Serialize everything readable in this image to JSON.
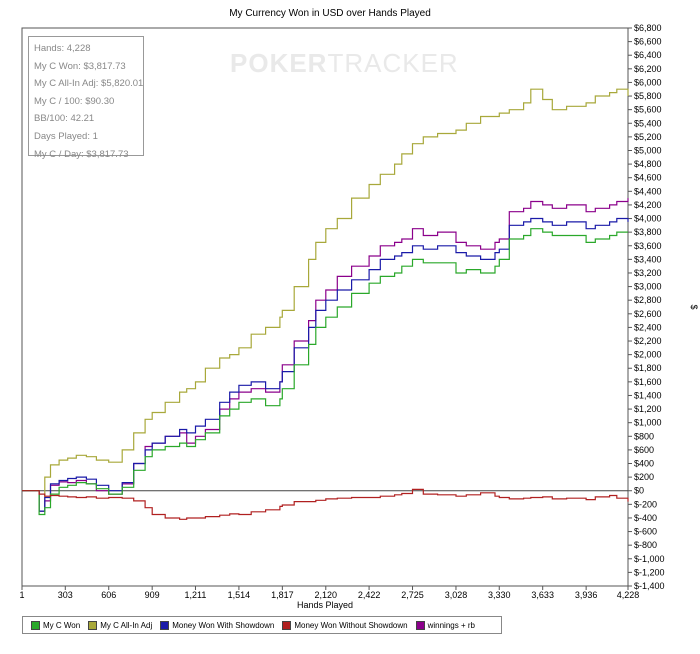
{
  "chart_data": {
    "type": "line",
    "title": "My Currency Won in USD over Hands Played",
    "xlabel": "Hands Played",
    "ylabel": "$",
    "xlim": [
      1,
      4228
    ],
    "ylim": [
      -1400,
      6800
    ],
    "x_ticks": [
      1,
      303,
      606,
      909,
      1211,
      1514,
      1817,
      2120,
      2422,
      2725,
      3028,
      3330,
      3633,
      3936,
      4228
    ],
    "x_tick_labels": [
      "1",
      "303",
      "606",
      "909",
      "1,211",
      "1,514",
      "1,817",
      "2,120",
      "2,422",
      "2,725",
      "3,028",
      "3,330",
      "3,633",
      "3,936",
      "4,228"
    ],
    "y_ticks": [
      -1400,
      -1200,
      -1000,
      -800,
      -600,
      -400,
      -200,
      0,
      200,
      400,
      600,
      800,
      1000,
      1200,
      1400,
      1600,
      1800,
      2000,
      2200,
      2400,
      2600,
      2800,
      3000,
      3200,
      3400,
      3600,
      3800,
      4000,
      4200,
      4400,
      4600,
      4800,
      5000,
      5200,
      5400,
      5600,
      5800,
      6000,
      6200,
      6400,
      6600,
      6800
    ],
    "y_tick_labels": [
      "$-1,400",
      "$-1,200",
      "$-1,000",
      "$-800",
      "$-600",
      "$-400",
      "$-200",
      "$0",
      "$200",
      "$400",
      "$600",
      "$800",
      "$1,000",
      "$1,200",
      "$1,400",
      "$1,600",
      "$1,800",
      "$2,000",
      "$2,200",
      "$2,400",
      "$2,600",
      "$2,800",
      "$3,000",
      "$3,200",
      "$3,400",
      "$3,600",
      "$3,800",
      "$4,000",
      "$4,200",
      "$4,400",
      "$4,600",
      "$4,800",
      "$5,000",
      "$5,200",
      "$5,400",
      "$5,600",
      "$5,800",
      "$6,000",
      "$6,200",
      "$6,400",
      "$6,600",
      "$6,800"
    ],
    "y_axis_side": "right",
    "grid": false,
    "legend_position": "bottom",
    "series": [
      {
        "name": "My C All-In Adj",
        "color": "#a8a83a",
        "x": [
          1,
          120,
          160,
          200,
          260,
          320,
          380,
          450,
          520,
          606,
          700,
          780,
          860,
          909,
          1000,
          1100,
          1150,
          1211,
          1280,
          1380,
          1450,
          1514,
          1600,
          1700,
          1800,
          1817,
          1900,
          2000,
          2050,
          2120,
          2200,
          2300,
          2422,
          2500,
          2600,
          2650,
          2725,
          2800,
          2900,
          3028,
          3100,
          3200,
          3300,
          3330,
          3400,
          3500,
          3550,
          3633,
          3700,
          3800,
          3936,
          4000,
          4100,
          4150,
          4228
        ],
        "y": [
          0,
          -300,
          200,
          380,
          450,
          480,
          520,
          500,
          450,
          420,
          600,
          850,
          1050,
          1150,
          1300,
          1450,
          1500,
          1600,
          1800,
          1950,
          2000,
          2100,
          2300,
          2400,
          2550,
          2650,
          3000,
          3400,
          3650,
          3850,
          4000,
          4300,
          4500,
          4650,
          4800,
          4950,
          5100,
          5200,
          5250,
          5300,
          5400,
          5500,
          5500,
          5550,
          5600,
          5700,
          5900,
          5750,
          5600,
          5650,
          5700,
          5800,
          5850,
          5900,
          5800
        ]
      },
      {
        "name": "winnings + rb",
        "color": "#8b008b",
        "x": [
          1,
          120,
          160,
          200,
          260,
          320,
          380,
          450,
          520,
          606,
          700,
          780,
          860,
          909,
          1000,
          1100,
          1150,
          1211,
          1280,
          1380,
          1450,
          1514,
          1600,
          1700,
          1800,
          1817,
          1900,
          2000,
          2050,
          2120,
          2200,
          2300,
          2422,
          2500,
          2600,
          2650,
          2725,
          2800,
          2900,
          3028,
          3100,
          3200,
          3300,
          3330,
          3400,
          3500,
          3550,
          3633,
          3700,
          3800,
          3936,
          4000,
          4100,
          4150,
          4228
        ],
        "y": [
          0,
          -300,
          -150,
          80,
          130,
          120,
          150,
          100,
          0,
          -50,
          100,
          400,
          650,
          700,
          800,
          850,
          700,
          800,
          900,
          1200,
          1350,
          1450,
          1500,
          1450,
          1600,
          1850,
          2200,
          2500,
          2800,
          2950,
          3150,
          3300,
          3450,
          3600,
          3650,
          3700,
          3850,
          3750,
          3800,
          3650,
          3600,
          3550,
          3650,
          3700,
          4100,
          4150,
          4250,
          4200,
          4150,
          4200,
          4100,
          4150,
          4200,
          4250,
          4300
        ]
      },
      {
        "name": "Money Won With Showdown",
        "color": "#1a1aa8",
        "x": [
          1,
          120,
          160,
          200,
          260,
          320,
          380,
          450,
          520,
          606,
          700,
          780,
          860,
          909,
          1000,
          1100,
          1150,
          1211,
          1280,
          1380,
          1450,
          1514,
          1600,
          1700,
          1800,
          1817,
          1900,
          2000,
          2050,
          2120,
          2200,
          2300,
          2422,
          2500,
          2600,
          2650,
          2725,
          2800,
          2900,
          3028,
          3100,
          3200,
          3300,
          3330,
          3400,
          3500,
          3550,
          3633,
          3700,
          3800,
          3936,
          4000,
          4100,
          4150,
          4228
        ],
        "y": [
          0,
          -300,
          -100,
          100,
          150,
          180,
          200,
          170,
          80,
          0,
          120,
          400,
          600,
          700,
          800,
          900,
          850,
          950,
          1050,
          1300,
          1450,
          1550,
          1600,
          1500,
          1600,
          1750,
          2100,
          2400,
          2650,
          2800,
          2950,
          3100,
          3250,
          3400,
          3450,
          3500,
          3600,
          3550,
          3600,
          3500,
          3450,
          3400,
          3500,
          3550,
          3900,
          3950,
          4000,
          3950,
          3900,
          3950,
          3850,
          3900,
          3950,
          4000,
          3950
        ]
      },
      {
        "name": "My C Won",
        "color": "#2aa82a",
        "x": [
          1,
          120,
          160,
          200,
          260,
          320,
          380,
          450,
          520,
          606,
          700,
          780,
          860,
          909,
          1000,
          1100,
          1150,
          1211,
          1280,
          1380,
          1450,
          1514,
          1600,
          1700,
          1800,
          1817,
          1900,
          2000,
          2050,
          2120,
          2200,
          2300,
          2422,
          2500,
          2600,
          2650,
          2725,
          2800,
          2900,
          3028,
          3100,
          3200,
          3300,
          3330,
          3400,
          3500,
          3550,
          3633,
          3700,
          3800,
          3936,
          4000,
          4100,
          4150,
          4228
        ],
        "y": [
          0,
          -350,
          -250,
          -50,
          50,
          80,
          120,
          100,
          30,
          -50,
          50,
          300,
          500,
          600,
          650,
          700,
          650,
          750,
          850,
          1100,
          1200,
          1300,
          1350,
          1250,
          1350,
          1500,
          1850,
          2150,
          2400,
          2550,
          2700,
          2900,
          3050,
          3150,
          3200,
          3300,
          3400,
          3350,
          3350,
          3200,
          3250,
          3200,
          3300,
          3400,
          3700,
          3750,
          3850,
          3800,
          3750,
          3750,
          3650,
          3700,
          3750,
          3800,
          3800
        ]
      },
      {
        "name": "Money Won Without Showdown",
        "color": "#b02020",
        "x": [
          1,
          120,
          160,
          200,
          260,
          320,
          380,
          450,
          520,
          606,
          700,
          780,
          860,
          909,
          1000,
          1100,
          1150,
          1211,
          1280,
          1380,
          1450,
          1514,
          1600,
          1700,
          1800,
          1817,
          1900,
          2000,
          2050,
          2120,
          2200,
          2300,
          2422,
          2500,
          2600,
          2650,
          2725,
          2800,
          2900,
          3028,
          3100,
          3200,
          3300,
          3330,
          3400,
          3500,
          3550,
          3633,
          3700,
          3800,
          3936,
          4000,
          4100,
          4150,
          4228
        ],
        "y": [
          0,
          -50,
          -80,
          -70,
          -80,
          -90,
          -100,
          -90,
          -110,
          -100,
          -110,
          -150,
          -250,
          -350,
          -400,
          -420,
          -400,
          -400,
          -380,
          -360,
          -340,
          -350,
          -310,
          -280,
          -230,
          -210,
          -160,
          -160,
          -140,
          -120,
          -110,
          -100,
          -100,
          -80,
          -60,
          -40,
          20,
          -50,
          -60,
          -80,
          -60,
          -30,
          -80,
          -100,
          -120,
          -110,
          -100,
          -90,
          -120,
          -110,
          -130,
          -90,
          -70,
          -110,
          -160
        ]
      }
    ]
  },
  "stats": [
    "Hands: 4,228",
    "My C Won: $3,817.73",
    "My C All-In Adj: $5,820.01",
    "My C / 100: $90.30",
    "BB/100: 42.21",
    "Days Played: 1",
    "My C / Day: $3,817.73"
  ],
  "watermark": {
    "bold": "POKER",
    "thin": "TRACKER"
  },
  "legend": [
    {
      "label": "My C Won",
      "color": "#2aa82a"
    },
    {
      "label": "My C All-In Adj",
      "color": "#a8a83a"
    },
    {
      "label": "Money Won With Showdown",
      "color": "#1a1aa8"
    },
    {
      "label": "Money Won Without Showdown",
      "color": "#b02020"
    },
    {
      "label": "winnings + rb",
      "color": "#8b008b"
    }
  ]
}
